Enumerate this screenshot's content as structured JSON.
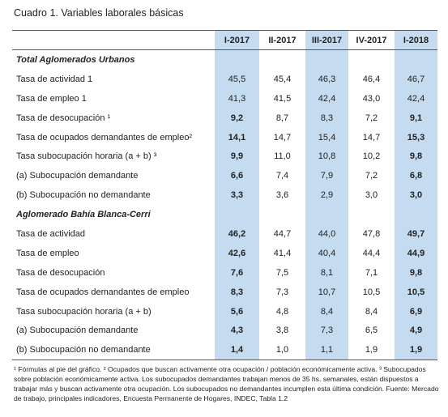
{
  "title": "Cuadro 1. Variables laborales básicas",
  "table": {
    "columns": [
      "I-2017",
      "II-2017",
      "III-2017",
      "IV-2017",
      "I-2018"
    ],
    "sections": [
      {
        "title": "Total Aglomerados Urbanos",
        "rows": [
          {
            "label": "Tasa de actividad 1",
            "values": [
              "45,5",
              "45,4",
              "46,3",
              "46,4",
              "46,7"
            ]
          },
          {
            "label": "Tasa de empleo 1",
            "values": [
              "41,3",
              "41,5",
              "42,4",
              "43,0",
              "42,4"
            ]
          },
          {
            "label": "Tasa de desocupación ¹",
            "values": [
              "9,2",
              "8,7",
              "8,3",
              "7,2",
              "9,1"
            ]
          },
          {
            "label": "Tasa de ocupados demandantes de empleo²",
            "values": [
              "14,1",
              "14,7",
              "15,4",
              "14,7",
              "15,3"
            ]
          },
          {
            "label": "Tasa subocupación horaria (a + b) ³",
            "values": [
              "9,9",
              "11,0",
              "10,8",
              "10,2",
              "9,8"
            ]
          },
          {
            "label": "(a) Subocupación demandante",
            "values": [
              "6,6",
              "7,4",
              "7,9",
              "7,2",
              "6,8"
            ]
          },
          {
            "label": "(b) Subocupación no demandante",
            "values": [
              "3,3",
              "3,6",
              "2,9",
              "3,0",
              "3,0"
            ]
          }
        ]
      },
      {
        "title": "Aglomerado Bahía Blanca-Cerri",
        "rows": [
          {
            "label": "Tasa de actividad",
            "values": [
              "46,2",
              "44,7",
              "44,0",
              "47,8",
              "49,7"
            ]
          },
          {
            "label": "Tasa de empleo",
            "values": [
              "42,6",
              "41,4",
              "40,4",
              "44,4",
              "44,9"
            ]
          },
          {
            "label": "Tasa de desocupación",
            "values": [
              "7,6",
              "7,5",
              "8,1",
              "7,1",
              "9,8"
            ]
          },
          {
            "label": "Tasa de ocupados demandantes de empleo",
            "values": [
              "8,3",
              "7,3",
              "10,7",
              "10,5",
              "10,5"
            ]
          },
          {
            "label": "Tasa subocupación horaria (a + b)",
            "values": [
              "5,6",
              "4,8",
              "8,4",
              "8,4",
              "6,9"
            ]
          },
          {
            "label": "(a) Subocupación demandante",
            "values": [
              "4,3",
              "3,8",
              "7,3",
              "6,5",
              "4,9"
            ]
          },
          {
            "label": "(b) Subocupación no demandante",
            "values": [
              "1,4",
              "1,0",
              "1,1",
              "1,9",
              "1,9"
            ]
          }
        ]
      }
    ]
  },
  "footnote": "¹ Fórmulas al pie del gráfico. ² Ocupados que buscan activamente otra ocupación / población económicamente activa. ³ Subocupados sobre población económicamente activa. Los subocupados demandantes trabajan menos de 35 hs. semanales, están dispuestos a trabajar más y buscan activamente otra ocupación. Los subocupados no demandantes incumplen esta última condición. Fuente: Mercado de trabajo, principales indicadores, Encuesta Permanente de Hogares, INDEC, Tabla 1.2"
}
